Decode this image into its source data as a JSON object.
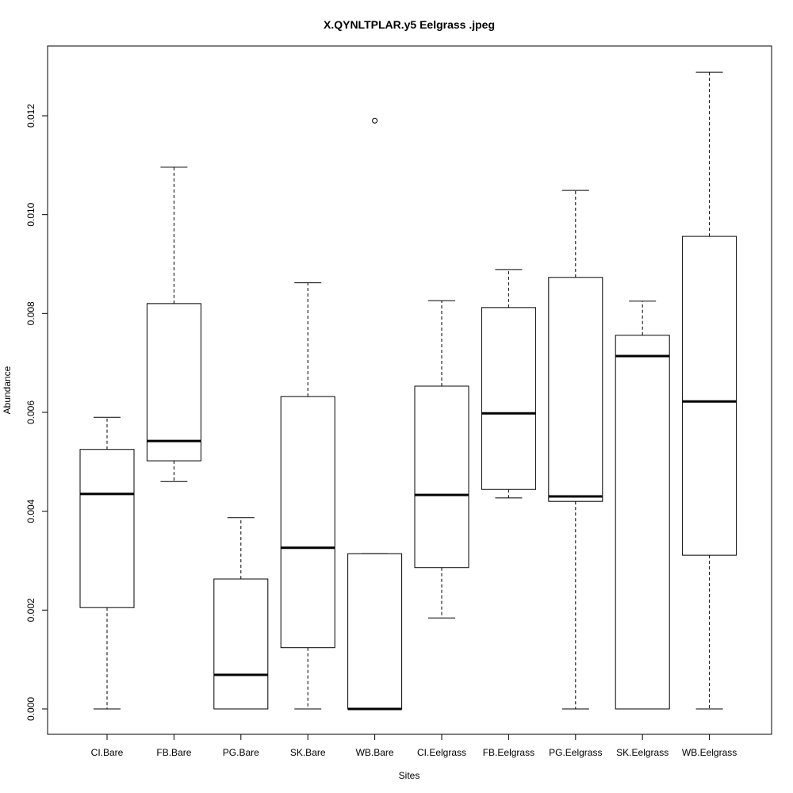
{
  "chart_data": {
    "type": "boxplot",
    "title": "X.QYNLTPLAR.y5 Eelgrass .jpeg",
    "xlabel": "Sites",
    "ylabel": "Abundance",
    "ylim": [
      -0.00055,
      0.01335
    ],
    "yticks": [
      0.0,
      0.002,
      0.004,
      0.006,
      0.008,
      0.01,
      0.012
    ],
    "ytick_labels": [
      "0.000",
      "0.002",
      "0.004",
      "0.006",
      "0.008",
      "0.010",
      "0.012"
    ],
    "grid": false,
    "categories": [
      "CI.Bare",
      "FB.Bare",
      "PG.Bare",
      "SK.Bare",
      "WB.Bare",
      "CI.Eelgrass",
      "FB.Eelgrass",
      "PG.Eelgrass",
      "SK.Eelgrass",
      "WB.Eelgrass"
    ],
    "boxes": [
      {
        "min": 0.0,
        "q1": 0.00205,
        "median": 0.00435,
        "q3": 0.00525,
        "max": 0.0059,
        "outliers": []
      },
      {
        "min": 0.0046,
        "q1": 0.00502,
        "median": 0.00542,
        "q3": 0.0082,
        "max": 0.01096,
        "outliers": []
      },
      {
        "min": 0.0,
        "q1": 0.0,
        "median": 0.00069,
        "q3": 0.00263,
        "max": 0.00387,
        "outliers": []
      },
      {
        "min": 0.0,
        "q1": 0.00124,
        "median": 0.00326,
        "q3": 0.00632,
        "max": 0.00862,
        "outliers": []
      },
      {
        "min": 0.0,
        "q1": 0.0,
        "median": 0.0,
        "q3": 0.00314,
        "max": 0.00314,
        "outliers": [
          0.0119
        ]
      },
      {
        "min": 0.00184,
        "q1": 0.00286,
        "median": 0.00433,
        "q3": 0.00653,
        "max": 0.00826,
        "outliers": []
      },
      {
        "min": 0.00427,
        "q1": 0.00444,
        "median": 0.00598,
        "q3": 0.00812,
        "max": 0.00889,
        "outliers": []
      },
      {
        "min": 0.0,
        "q1": 0.0042,
        "median": 0.0043,
        "q3": 0.00873,
        "max": 0.01049,
        "outliers": []
      },
      {
        "min": 0.0,
        "q1": 0.0,
        "median": 0.00714,
        "q3": 0.00756,
        "max": 0.00825,
        "outliers": []
      },
      {
        "min": 0.0,
        "q1": 0.00311,
        "median": 0.00622,
        "q3": 0.00956,
        "max": 0.01288,
        "outliers": []
      }
    ]
  }
}
